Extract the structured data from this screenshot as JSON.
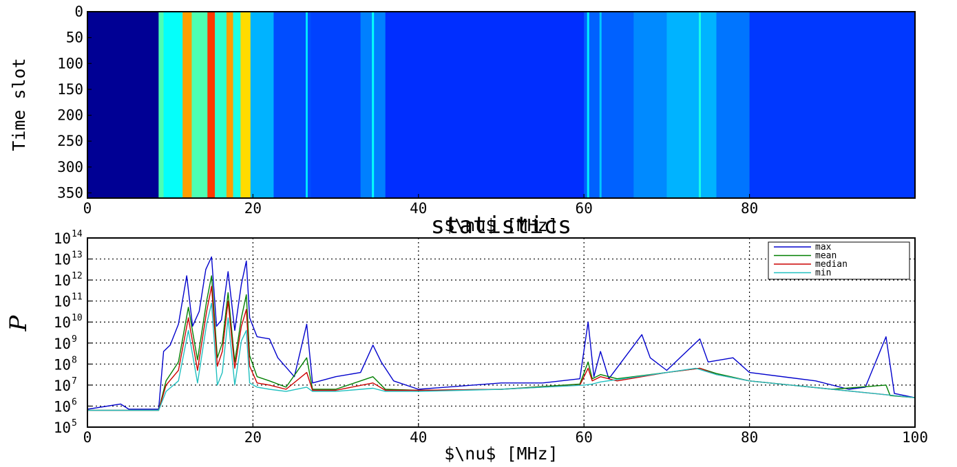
{
  "chart_data": [
    {
      "type": "heatmap",
      "title": "",
      "xlabel": "$\\nu$ [MHz]",
      "ylabel": "Time slot",
      "xlim": [
        0,
        100
      ],
      "ylim": [
        360,
        0
      ],
      "xticks": [
        "0",
        "20",
        "40",
        "60",
        "80"
      ],
      "yticks": [
        "0",
        "50",
        "100",
        "150",
        "200",
        "250",
        "300",
        "350"
      ],
      "colormap": "jet",
      "bands": [
        {
          "from": 0,
          "to": 8.6,
          "level": 0.02
        },
        {
          "from": 8.6,
          "to": 9.2,
          "level": 0.45
        },
        {
          "from": 9.2,
          "to": 11.5,
          "level": 0.38
        },
        {
          "from": 11.5,
          "to": 12.6,
          "level": 0.72
        },
        {
          "from": 12.6,
          "to": 14.5,
          "level": 0.45
        },
        {
          "from": 14.5,
          "to": 15.4,
          "level": 0.82
        },
        {
          "from": 15.4,
          "to": 16.8,
          "level": 0.42
        },
        {
          "from": 16.8,
          "to": 17.6,
          "level": 0.72
        },
        {
          "from": 17.6,
          "to": 18.5,
          "level": 0.4
        },
        {
          "from": 18.5,
          "to": 19.7,
          "level": 0.66
        },
        {
          "from": 19.7,
          "to": 22.5,
          "level": 0.3
        },
        {
          "from": 22.5,
          "to": 27,
          "level": 0.2
        },
        {
          "from": 27,
          "to": 33,
          "level": 0.19
        },
        {
          "from": 33,
          "to": 36,
          "level": 0.25
        },
        {
          "from": 36,
          "to": 60,
          "level": 0.17
        },
        {
          "from": 60,
          "to": 66,
          "level": 0.22
        },
        {
          "from": 66,
          "to": 70,
          "level": 0.26
        },
        {
          "from": 70,
          "to": 76,
          "level": 0.3
        },
        {
          "from": 76,
          "to": 80,
          "level": 0.24
        },
        {
          "from": 80,
          "to": 100,
          "level": 0.18
        }
      ],
      "lines": [
        {
          "x": 26.5,
          "level": 0.35
        },
        {
          "x": 34.5,
          "level": 0.38
        },
        {
          "x": 60.5,
          "level": 0.36
        },
        {
          "x": 62,
          "level": 0.32
        },
        {
          "x": 74,
          "level": 0.4
        }
      ]
    },
    {
      "type": "line",
      "title": "statistics",
      "xlabel": "$\\nu$ [MHz]",
      "ylabel": "P",
      "xlim": [
        0,
        100
      ],
      "ylim": [
        5,
        14
      ],
      "yscale": "log",
      "grid": true,
      "legend_position": "top-right",
      "xticks": [
        "0",
        "20",
        "40",
        "60",
        "80",
        "100"
      ],
      "yticks": [
        {
          "base": "10",
          "exp": "5"
        },
        {
          "base": "10",
          "exp": "6"
        },
        {
          "base": "10",
          "exp": "7"
        },
        {
          "base": "10",
          "exp": "8"
        },
        {
          "base": "10",
          "exp": "9"
        },
        {
          "base": "10",
          "exp": "10"
        },
        {
          "base": "10",
          "exp": "11"
        },
        {
          "base": "10",
          "exp": "12"
        },
        {
          "base": "10",
          "exp": "13"
        },
        {
          "base": "10",
          "exp": "14"
        }
      ],
      "series": [
        {
          "name": "max",
          "color": "#0000cc",
          "x": [
            0,
            4,
            5,
            8.6,
            9.2,
            10,
            11,
            12,
            12.7,
            13.5,
            14.3,
            15,
            15.6,
            16.2,
            17,
            17.8,
            18.6,
            19.2,
            19.6,
            20.5,
            22,
            23,
            25,
            26.5,
            27.2,
            30,
            33,
            34.5,
            35.5,
            37,
            40,
            50,
            55,
            59.5,
            60.5,
            61.2,
            62,
            63,
            67,
            68,
            70,
            74,
            75,
            78,
            80,
            88,
            92,
            94,
            96.5,
            97.5,
            100
          ],
          "y": [
            5.85,
            6.1,
            5.85,
            5.85,
            8.6,
            8.9,
            9.9,
            12.2,
            9.8,
            10.5,
            12.5,
            13.1,
            9.8,
            10.1,
            12.4,
            9.6,
            11.8,
            12.9,
            10.2,
            9.3,
            9.2,
            8.3,
            7.4,
            9.9,
            7.1,
            7.4,
            7.6,
            8.9,
            8.1,
            7.2,
            6.8,
            7.1,
            7.1,
            7.3,
            10.0,
            7.4,
            8.6,
            7.3,
            9.4,
            8.3,
            7.7,
            9.2,
            8.1,
            8.3,
            7.6,
            7.2,
            6.8,
            6.9,
            9.3,
            6.6,
            6.4
          ]
        },
        {
          "name": "mean",
          "color": "#007f00",
          "x": [
            0,
            8.6,
            9.5,
            11,
            12.2,
            13.3,
            14.4,
            15,
            15.7,
            16.3,
            17,
            17.8,
            18.6,
            19.2,
            19.6,
            20.5,
            22,
            24,
            26.5,
            27.2,
            30,
            34.5,
            36,
            40,
            50,
            59.5,
            60.5,
            61,
            62,
            64,
            70,
            74,
            76,
            80,
            90,
            96.5,
            97,
            100
          ],
          "y": [
            5.8,
            5.8,
            7.2,
            8.1,
            10.7,
            8.2,
            11.0,
            12.2,
            8.3,
            9.0,
            11.4,
            8.1,
            10.2,
            11.3,
            8.4,
            7.4,
            7.2,
            6.9,
            8.3,
            6.8,
            6.8,
            7.4,
            6.8,
            6.75,
            6.8,
            7.05,
            8.1,
            7.3,
            7.5,
            7.3,
            7.6,
            7.8,
            7.55,
            7.2,
            6.8,
            7.0,
            6.5,
            6.4
          ]
        },
        {
          "name": "median",
          "color": "#cc0000",
          "x": [
            0,
            8.6,
            9.5,
            11,
            12.2,
            13.3,
            14.4,
            15,
            15.7,
            16.3,
            17,
            17.8,
            18.6,
            19.2,
            19.6,
            20.5,
            22,
            24,
            26.5,
            27.2,
            30,
            34.5,
            36,
            40,
            50,
            59.5,
            60.5,
            61,
            62,
            64,
            70,
            74,
            76,
            80,
            90,
            100
          ],
          "y": [
            5.8,
            5.8,
            7.0,
            7.7,
            10.2,
            7.7,
            10.5,
            11.7,
            7.9,
            8.6,
            11.0,
            7.8,
            9.8,
            10.6,
            7.9,
            7.1,
            7.0,
            6.8,
            7.6,
            6.75,
            6.75,
            7.1,
            6.75,
            6.75,
            6.8,
            7.0,
            7.8,
            7.2,
            7.4,
            7.2,
            7.6,
            7.8,
            7.5,
            7.2,
            6.8,
            6.4
          ]
        },
        {
          "name": "min",
          "color": "#1fbfbf",
          "x": [
            0,
            8.6,
            9.5,
            11,
            12.2,
            13.3,
            14.4,
            15,
            15.7,
            16.3,
            17,
            17.8,
            18.6,
            19.2,
            19.6,
            20.5,
            22,
            24,
            26.5,
            27.2,
            30,
            34.5,
            36,
            40,
            50,
            60,
            61,
            62,
            70,
            73.5,
            76,
            80,
            90,
            100
          ],
          "y": [
            5.8,
            5.8,
            6.7,
            7.2,
            9.6,
            7.1,
            9.9,
            10.9,
            7.0,
            7.6,
            10.2,
            7.0,
            9.1,
            9.6,
            7.1,
            6.9,
            6.8,
            6.7,
            6.9,
            6.7,
            6.7,
            6.85,
            6.7,
            6.7,
            6.8,
            7.0,
            7.05,
            7.15,
            7.6,
            7.8,
            7.5,
            7.2,
            6.8,
            6.4
          ]
        }
      ]
    }
  ]
}
